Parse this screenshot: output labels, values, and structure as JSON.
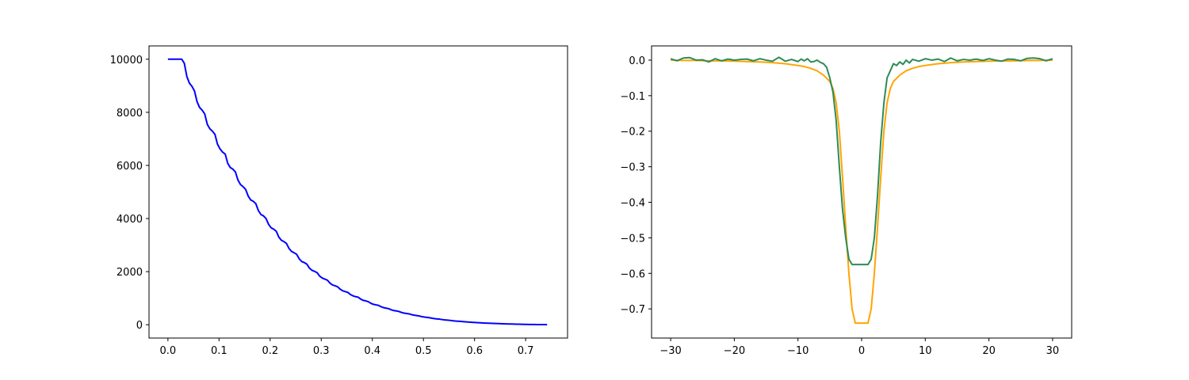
{
  "colors": {
    "left_series": "#0000ff",
    "right_data": "#2e8b57",
    "right_model": "#ffa500"
  },
  "chart_data": [
    {
      "type": "line",
      "title": "",
      "xlabel": "",
      "ylabel": "",
      "xlim": [
        -0.037,
        0.782
      ],
      "ylim": [
        -500,
        10500
      ],
      "grid": false,
      "legend": "none",
      "xticks": [
        0.0,
        0.1,
        0.2,
        0.3,
        0.4,
        0.5,
        0.6,
        0.7
      ],
      "xtick_labels": [
        "0.0",
        "0.1",
        "0.2",
        "0.3",
        "0.4",
        "0.5",
        "0.6",
        "0.7"
      ],
      "yticks": [
        0,
        2000,
        4000,
        6000,
        8000,
        10000
      ],
      "ytick_labels": [
        "0",
        "2000",
        "4000",
        "6000",
        "8000",
        "10000"
      ],
      "series": [
        {
          "color": "#0000ff",
          "x": [
            0.0,
            0.01,
            0.02,
            0.027,
            0.032,
            0.037,
            0.042,
            0.047,
            0.052,
            0.057,
            0.062,
            0.067,
            0.072,
            0.077,
            0.082,
            0.087,
            0.092,
            0.097,
            0.102,
            0.107,
            0.112,
            0.117,
            0.122,
            0.127,
            0.132,
            0.137,
            0.142,
            0.147,
            0.152,
            0.157,
            0.162,
            0.167,
            0.172,
            0.177,
            0.182,
            0.187,
            0.192,
            0.197,
            0.202,
            0.207,
            0.212,
            0.217,
            0.222,
            0.227,
            0.232,
            0.237,
            0.242,
            0.247,
            0.252,
            0.257,
            0.262,
            0.267,
            0.272,
            0.277,
            0.282,
            0.287,
            0.292,
            0.297,
            0.302,
            0.307,
            0.312,
            0.317,
            0.322,
            0.327,
            0.332,
            0.337,
            0.342,
            0.347,
            0.352,
            0.357,
            0.362,
            0.367,
            0.372,
            0.377,
            0.382,
            0.387,
            0.392,
            0.397,
            0.402,
            0.407,
            0.412,
            0.417,
            0.422,
            0.427,
            0.432,
            0.437,
            0.442,
            0.447,
            0.452,
            0.457,
            0.462,
            0.467,
            0.472,
            0.477,
            0.482,
            0.487,
            0.492,
            0.497,
            0.502,
            0.507,
            0.512,
            0.517,
            0.522,
            0.527,
            0.532,
            0.537,
            0.542,
            0.547,
            0.552,
            0.557,
            0.562,
            0.567,
            0.572,
            0.577,
            0.582,
            0.587,
            0.592,
            0.597,
            0.602,
            0.607,
            0.612,
            0.617,
            0.622,
            0.627,
            0.632,
            0.637,
            0.642,
            0.647,
            0.652,
            0.657,
            0.662,
            0.667,
            0.672,
            0.677,
            0.682,
            0.687,
            0.692,
            0.697,
            0.702,
            0.707,
            0.712,
            0.717,
            0.722,
            0.727,
            0.732,
            0.737,
            0.742
          ],
          "y": [
            10000,
            10000,
            10000,
            10000,
            9850,
            9350,
            9100,
            8980,
            8800,
            8400,
            8180,
            8080,
            7940,
            7550,
            7380,
            7290,
            7170,
            6800,
            6620,
            6500,
            6430,
            6080,
            5920,
            5860,
            5760,
            5450,
            5280,
            5200,
            5100,
            4850,
            4700,
            4650,
            4560,
            4300,
            4150,
            4100,
            4000,
            3780,
            3650,
            3600,
            3520,
            3300,
            3180,
            3130,
            3060,
            2870,
            2760,
            2710,
            2650,
            2480,
            2380,
            2340,
            2280,
            2130,
            2050,
            2010,
            1960,
            1830,
            1760,
            1720,
            1680,
            1570,
            1500,
            1470,
            1430,
            1340,
            1280,
            1250,
            1220,
            1140,
            1090,
            1060,
            1040,
            970,
            920,
            900,
            870,
            810,
            770,
            750,
            730,
            680,
            645,
            625,
            605,
            565,
            535,
            520,
            500,
            465,
            440,
            425,
            410,
            380,
            360,
            345,
            330,
            305,
            290,
            278,
            265,
            245,
            230,
            220,
            210,
            195,
            182,
            173,
            165,
            152,
            142,
            135,
            128,
            118,
            110,
            104,
            98,
            90,
            84,
            79,
            74,
            68,
            63,
            59,
            55,
            50,
            46,
            43,
            40,
            36,
            33,
            30,
            28,
            25,
            22,
            20,
            18,
            16,
            14,
            12,
            10,
            9,
            8,
            7,
            6,
            5,
            4
          ]
        }
      ]
    },
    {
      "type": "line",
      "title": "",
      "xlabel": "",
      "ylabel": "",
      "xlim": [
        -33,
        33
      ],
      "ylim": [
        -0.782,
        0.04
      ],
      "grid": false,
      "legend": "none",
      "xticks": [
        -30,
        -20,
        -10,
        0,
        10,
        20,
        30
      ],
      "xtick_labels": [
        "−30",
        "−20",
        "−10",
        "0",
        "10",
        "20",
        "30"
      ],
      "yticks": [
        0.0,
        -0.1,
        -0.2,
        -0.3,
        -0.4,
        -0.5,
        -0.6,
        -0.7
      ],
      "ytick_labels": [
        "0.0",
        "−0.1",
        "−0.2",
        "−0.3",
        "−0.4",
        "−0.5",
        "−0.6",
        "−0.7"
      ],
      "series": [
        {
          "color": "#ffa500",
          "x": [
            -30,
            -28,
            -26,
            -24,
            -22,
            -20,
            -18,
            -16,
            -14,
            -12,
            -10,
            -9,
            -8,
            -7,
            -6,
            -5,
            -4.5,
            -4,
            -3.5,
            -3,
            -2.5,
            -2,
            -1.5,
            -1,
            1,
            1.5,
            2,
            2.5,
            3,
            3.5,
            4,
            4.5,
            5,
            6,
            7,
            8,
            9,
            10,
            12,
            14,
            16,
            18,
            20,
            22,
            24,
            26,
            28,
            30
          ],
          "y": [
            0.0,
            -0.001,
            -0.001,
            -0.002,
            -0.002,
            -0.003,
            -0.004,
            -0.005,
            -0.007,
            -0.01,
            -0.015,
            -0.018,
            -0.023,
            -0.03,
            -0.042,
            -0.06,
            -0.08,
            -0.12,
            -0.2,
            -0.33,
            -0.47,
            -0.6,
            -0.7,
            -0.74,
            -0.74,
            -0.7,
            -0.6,
            -0.47,
            -0.33,
            -0.2,
            -0.12,
            -0.08,
            -0.06,
            -0.042,
            -0.03,
            -0.023,
            -0.018,
            -0.015,
            -0.01,
            -0.007,
            -0.005,
            -0.004,
            -0.003,
            -0.002,
            -0.002,
            -0.001,
            -0.001,
            0.0
          ]
        },
        {
          "color": "#2e8b57",
          "x": [
            -30,
            -29,
            -28,
            -27,
            -26,
            -25,
            -24,
            -23,
            -22,
            -21,
            -20,
            -19,
            -18,
            -17,
            -16,
            -15,
            -14,
            -13,
            -12,
            -11,
            -10,
            -9.5,
            -9,
            -8.5,
            -8,
            -7.5,
            -7,
            -6.5,
            -6,
            -5.5,
            -5,
            -4.5,
            -4,
            -3.5,
            -3,
            -2.5,
            -2,
            -1.5,
            -1,
            1,
            1.5,
            2,
            2.5,
            3,
            3.5,
            4,
            4.5,
            5,
            5.5,
            6,
            6.5,
            7,
            7.5,
            8,
            9,
            10,
            11,
            12,
            13,
            14,
            15,
            16,
            17,
            18,
            19,
            20,
            21,
            22,
            23,
            24,
            25,
            26,
            27,
            28,
            29,
            30
          ],
          "y": [
            0.004,
            -0.002,
            0.006,
            0.007,
            0.0,
            0.001,
            -0.005,
            0.004,
            -0.002,
            0.003,
            0.0,
            0.002,
            0.003,
            -0.002,
            0.004,
            0.0,
            -0.003,
            0.008,
            -0.003,
            0.002,
            -0.004,
            0.003,
            -0.002,
            0.004,
            -0.005,
            -0.004,
            0.0,
            -0.006,
            -0.01,
            -0.02,
            -0.05,
            -0.09,
            -0.17,
            -0.3,
            -0.42,
            -0.5,
            -0.56,
            -0.575,
            -0.575,
            -0.575,
            -0.56,
            -0.5,
            -0.38,
            -0.23,
            -0.12,
            -0.05,
            -0.03,
            -0.01,
            -0.015,
            -0.005,
            -0.012,
            0.0,
            -0.008,
            0.002,
            -0.003,
            0.004,
            0.0,
            0.003,
            -0.004,
            0.006,
            -0.002,
            0.002,
            0.0,
            0.003,
            -0.001,
            0.004,
            0.0,
            -0.003,
            0.003,
            0.002,
            -0.002,
            0.005,
            0.006,
            0.004,
            -0.002,
            0.004
          ]
        }
      ]
    }
  ]
}
